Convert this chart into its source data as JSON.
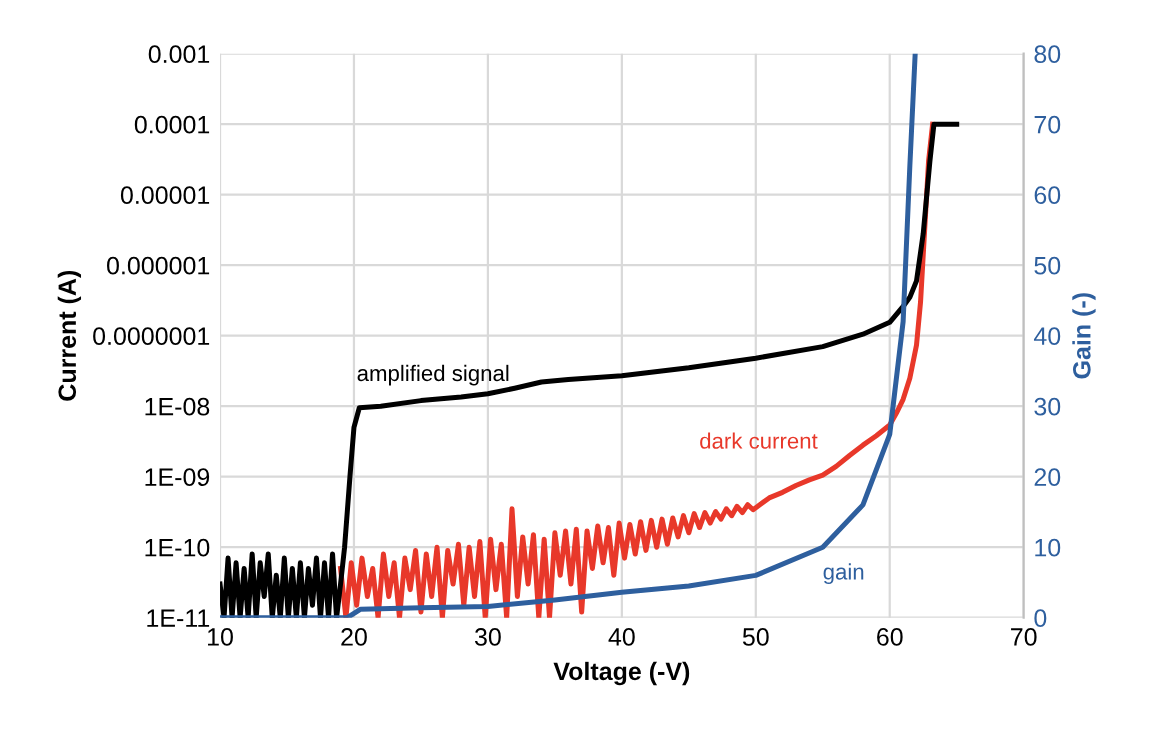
{
  "chart_data": {
    "type": "line",
    "xlabel": "Voltage (-V)",
    "ylabel": "Current (A)",
    "y2label": "Gain (-)",
    "log": "y",
    "grid": true,
    "xlim": [
      10,
      70
    ],
    "xticks": [
      10,
      20,
      30,
      40,
      50,
      60,
      70
    ],
    "ylim": [
      1e-11,
      0.001
    ],
    "yticks": [
      {
        "value": 1e-11,
        "label": "1E-11"
      },
      {
        "value": 1e-10,
        "label": "1E-10"
      },
      {
        "value": 1e-09,
        "label": "1E-09"
      },
      {
        "value": 1e-08,
        "label": "1E-08"
      },
      {
        "value": 1e-07,
        "label": "0.0000001"
      },
      {
        "value": 1e-06,
        "label": "0.000001"
      },
      {
        "value": 1e-05,
        "label": "0.00001"
      },
      {
        "value": 0.0001,
        "label": "0.0001"
      },
      {
        "value": 0.001,
        "label": "0.001"
      }
    ],
    "y2lim": [
      0,
      80
    ],
    "y2ticks": [
      0,
      10,
      20,
      30,
      40,
      50,
      60,
      70,
      80
    ],
    "series": [
      {
        "color": "#e8382a",
        "x": [
          19.0,
          19.4,
          19.8,
          20.2,
          20.6,
          21.0,
          21.4,
          21.8,
          22.2,
          22.6,
          23.0,
          23.4,
          23.8,
          24.2,
          24.6,
          25.0,
          25.4,
          25.8,
          26.2,
          26.6,
          27.0,
          27.4,
          27.8,
          28.2,
          28.6,
          29.0,
          29.4,
          29.8,
          30.2,
          30.6,
          31.0,
          31.4,
          31.8,
          32.2,
          32.6,
          33.0,
          33.4,
          33.8,
          34.2,
          34.6,
          35.0,
          35.4,
          35.8,
          36.2,
          36.6,
          37.0,
          37.4,
          37.8,
          38.2,
          38.6,
          39.0,
          39.4,
          39.8,
          40.2,
          40.6,
          41.0,
          41.4,
          41.8,
          42.2,
          42.6,
          43.0,
          43.4,
          43.8,
          44.2,
          44.6,
          45.0,
          45.4,
          45.8,
          46.2,
          46.6,
          47.0,
          47.4,
          47.8,
          48.2,
          48.6,
          49.0,
          49.4,
          49.8,
          51,
          52,
          53,
          54,
          55,
          56,
          57,
          58,
          59,
          60,
          60.5,
          61,
          61.5,
          62,
          62.3,
          62.6,
          62.9,
          63.2
        ],
        "values": [
          5e-11,
          1e-11,
          6e-11,
          1.5e-11,
          7e-11,
          2e-11,
          5e-11,
          1e-11,
          8e-11,
          2e-11,
          6e-11,
          1e-11,
          7e-11,
          2.5e-11,
          9e-11,
          1.2e-11,
          8e-11,
          2e-11,
          1e-10,
          1e-11,
          9e-11,
          3e-11,
          1.1e-10,
          1.5e-11,
          1e-10,
          2e-11,
          1.2e-10,
          1e-11,
          1.3e-10,
          2.5e-11,
          1.1e-10,
          1e-11,
          3.5e-10,
          2e-11,
          1.4e-10,
          3e-11,
          1.5e-10,
          1e-11,
          1.3e-10,
          1e-11,
          1.6e-10,
          4e-11,
          1.7e-10,
          3e-11,
          1.8e-10,
          1.2e-11,
          1.7e-10,
          5e-11,
          2e-10,
          6e-11,
          1.9e-10,
          4e-11,
          2.2e-10,
          7e-11,
          2.1e-10,
          8e-11,
          2.3e-10,
          9e-11,
          2.4e-10,
          1e-10,
          2.5e-10,
          1.1e-10,
          2.6e-10,
          1.4e-10,
          2.8e-10,
          1.6e-10,
          3e-10,
          1.9e-10,
          3.1e-10,
          2.2e-10,
          3.2e-10,
          2.5e-10,
          3.5e-10,
          2.8e-10,
          3.8e-10,
          3.1e-10,
          4e-10,
          3.4e-10,
          5e-10,
          6e-10,
          7.5e-10,
          9e-10,
          1.05e-09,
          1.4e-09,
          2e-09,
          2.8e-09,
          3.8e-09,
          5.4e-09,
          8e-09,
          1.25e-08,
          2.5e-08,
          7.4e-08,
          3e-07,
          3e-06,
          3e-05,
          0.0001
        ]
      },
      {
        "color": "#000000",
        "x": [
          10.0,
          10.3,
          10.6,
          10.9,
          11.2,
          11.5,
          11.8,
          12.1,
          12.4,
          12.7,
          13.0,
          13.3,
          13.6,
          13.9,
          14.2,
          14.5,
          14.8,
          15.1,
          15.4,
          15.7,
          16.0,
          16.3,
          16.6,
          16.9,
          17.2,
          17.5,
          17.8,
          18.1,
          18.4,
          18.7,
          19.0,
          19.3,
          19.7,
          20.0,
          20.4,
          22,
          25,
          28,
          30,
          32,
          34,
          36,
          40,
          45,
          50,
          55,
          58,
          60,
          61,
          61.5,
          62,
          62.5,
          63,
          63.3,
          65
        ],
        "values": [
          3e-11,
          1e-11,
          7e-11,
          1e-11,
          6e-11,
          1e-11,
          5e-11,
          1e-11,
          8e-11,
          1e-11,
          6e-11,
          2e-11,
          8e-11,
          1e-11,
          4e-11,
          1e-11,
          7e-11,
          1e-11,
          5e-11,
          1e-11,
          6e-11,
          1e-11,
          5e-11,
          1.5e-11,
          7e-11,
          1e-11,
          6e-11,
          1e-11,
          8e-11,
          1e-11,
          3e-11,
          1e-10,
          1e-09,
          5e-09,
          9.5e-09,
          1e-08,
          1.2e-08,
          1.35e-08,
          1.5e-08,
          1.8e-08,
          2.2e-08,
          2.4e-08,
          2.7e-08,
          3.5e-08,
          4.8e-08,
          7e-08,
          1.05e-07,
          1.55e-07,
          2.6e-07,
          3.5e-07,
          6e-07,
          2.8e-06,
          3e-05,
          0.0001,
          0.0001
        ]
      },
      {
        "color": "#2e5f9e",
        "axis": "y2",
        "x": [
          10,
          19.5,
          20.5,
          25,
          30,
          35,
          40,
          45,
          50,
          55,
          58,
          60,
          61,
          61.5,
          61.9
        ],
        "values": [
          0,
          0,
          1.2,
          1.4,
          1.6,
          2.5,
          3.6,
          4.5,
          6,
          10,
          16,
          26,
          42,
          64,
          80
        ]
      }
    ],
    "annotations": [
      "amplified signal",
      "dark current",
      "gain"
    ]
  }
}
